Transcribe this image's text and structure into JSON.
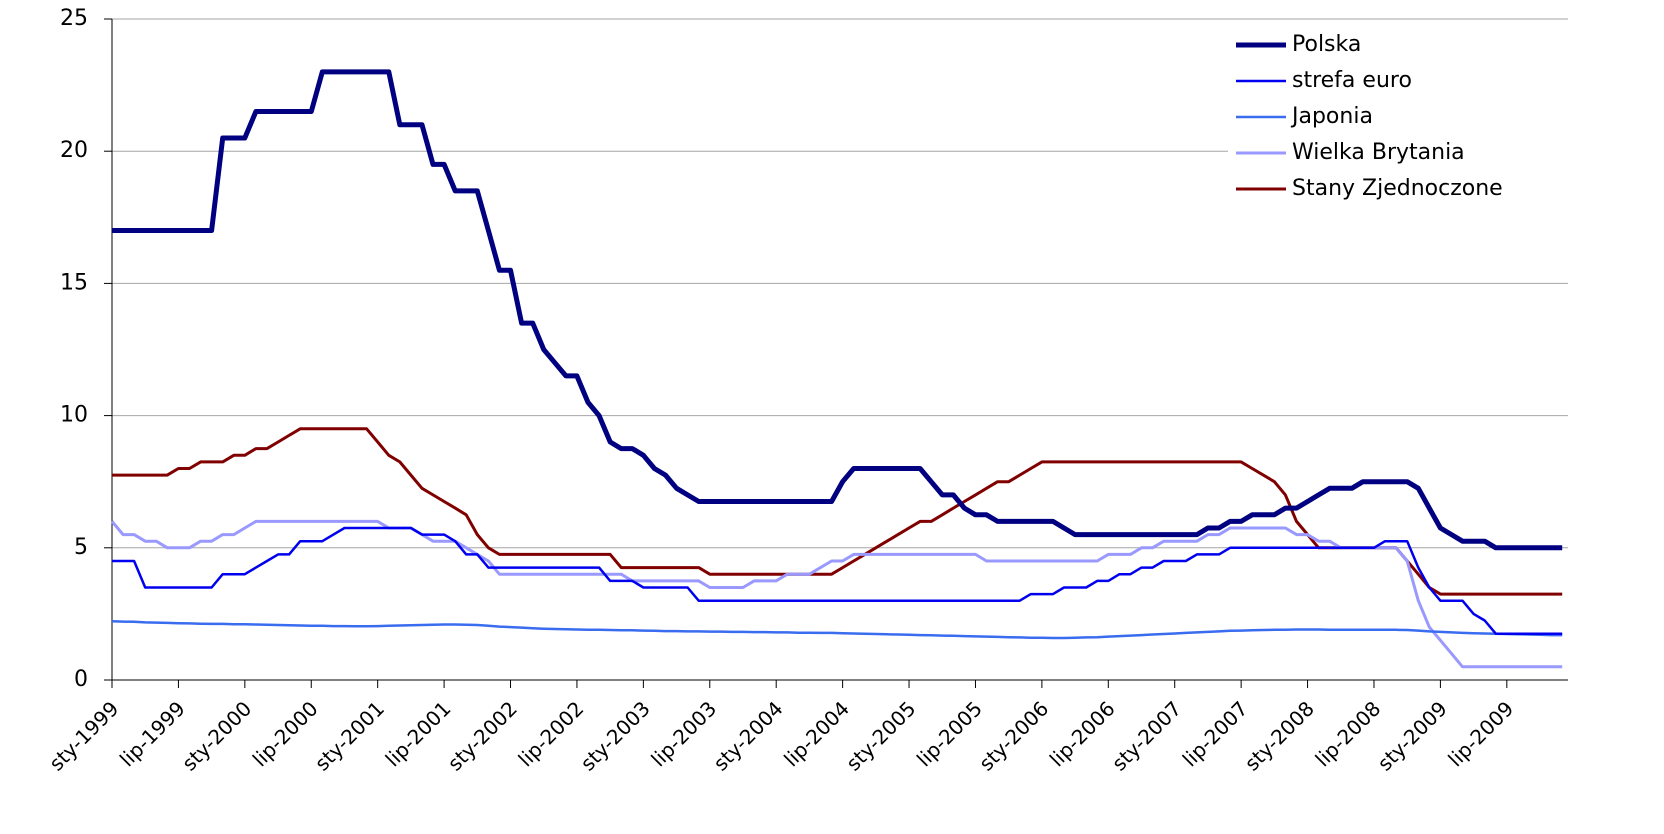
{
  "chart_data": {
    "type": "line",
    "categories": [
      "sty-1999",
      null,
      null,
      null,
      null,
      null,
      "lip-1999",
      null,
      null,
      null,
      null,
      null,
      "sty-2000",
      null,
      null,
      null,
      null,
      null,
      "lip-2000",
      null,
      null,
      null,
      null,
      null,
      "sty-2001",
      null,
      null,
      null,
      null,
      null,
      "lip-2001",
      null,
      null,
      null,
      null,
      null,
      "sty-2002",
      null,
      null,
      null,
      null,
      null,
      "lip-2002",
      null,
      null,
      null,
      null,
      null,
      "sty-2003",
      null,
      null,
      null,
      null,
      null,
      "lip-2003",
      null,
      null,
      null,
      null,
      null,
      "sty-2004",
      null,
      null,
      null,
      null,
      null,
      "lip-2004",
      null,
      null,
      null,
      null,
      null,
      "sty-2005",
      null,
      null,
      null,
      null,
      null,
      "lip-2005",
      null,
      null,
      null,
      null,
      null,
      "sty-2006",
      null,
      null,
      null,
      null,
      null,
      "lip-2006",
      null,
      null,
      null,
      null,
      null,
      "sty-2007",
      null,
      null,
      null,
      null,
      null,
      "lip-2007",
      null,
      null,
      null,
      null,
      null,
      "sty-2008",
      null,
      null,
      null,
      null,
      null,
      "lip-2008",
      null,
      null,
      null,
      null,
      null,
      "sty-2009",
      null,
      null,
      null,
      null,
      null,
      "lip-2009",
      null,
      null,
      null,
      null,
      null
    ],
    "series": [
      {
        "name": "Polska",
        "color": "#000080",
        "width": 5,
        "values": [
          17,
          17,
          17,
          17,
          17,
          17,
          17,
          17,
          17,
          17,
          20.5,
          20.5,
          20.5,
          21.5,
          21.5,
          21.5,
          21.5,
          21.5,
          21.5,
          23,
          23,
          23,
          23,
          23,
          23,
          23,
          21,
          21,
          21,
          19.5,
          19.5,
          18.5,
          18.5,
          18.5,
          17,
          15.5,
          15.5,
          13.5,
          13.5,
          12.5,
          12,
          11.5,
          11.5,
          10.5,
          10,
          9,
          8.75,
          8.75,
          8.5,
          8,
          7.75,
          7.25,
          7,
          6.75,
          6.75,
          6.75,
          6.75,
          6.75,
          6.75,
          6.75,
          6.75,
          6.75,
          6.75,
          6.75,
          6.75,
          6.75,
          7.5,
          8,
          8,
          8,
          8,
          8,
          8,
          8,
          7.5,
          7,
          7,
          6.5,
          6.25,
          6.25,
          6,
          6,
          6,
          6,
          6,
          6,
          5.75,
          5.5,
          5.5,
          5.5,
          5.5,
          5.5,
          5.5,
          5.5,
          5.5,
          5.5,
          5.5,
          5.5,
          5.5,
          5.75,
          5.75,
          6,
          6,
          6.25,
          6.25,
          6.25,
          6.5,
          6.5,
          6.75,
          7,
          7.25,
          7.25,
          7.25,
          7.5,
          7.5,
          7.5,
          7.5,
          7.5,
          7.25,
          6.5,
          5.75,
          5.5,
          5.25,
          5.25,
          5.25,
          5,
          5,
          5,
          5,
          5,
          5,
          5
        ]
      },
      {
        "name": "strefa euro",
        "color": "#0000ee",
        "width": 2.5,
        "values": [
          4.5,
          4.5,
          4.5,
          3.5,
          3.5,
          3.5,
          3.5,
          3.5,
          3.5,
          3.5,
          4,
          4,
          4,
          4.25,
          4.5,
          4.75,
          4.75,
          5.25,
          5.25,
          5.25,
          5.5,
          5.75,
          5.75,
          5.75,
          5.75,
          5.75,
          5.75,
          5.75,
          5.5,
          5.5,
          5.5,
          5.25,
          4.75,
          4.75,
          4.25,
          4.25,
          4.25,
          4.25,
          4.25,
          4.25,
          4.25,
          4.25,
          4.25,
          4.25,
          4.25,
          3.75,
          3.75,
          3.75,
          3.5,
          3.5,
          3.5,
          3.5,
          3.5,
          3,
          3,
          3,
          3,
          3,
          3,
          3,
          3,
          3,
          3,
          3,
          3,
          3,
          3,
          3,
          3,
          3,
          3,
          3,
          3,
          3,
          3,
          3,
          3,
          3,
          3,
          3,
          3,
          3,
          3,
          3.25,
          3.25,
          3.25,
          3.5,
          3.5,
          3.5,
          3.75,
          3.75,
          4,
          4,
          4.25,
          4.25,
          4.5,
          4.5,
          4.5,
          4.75,
          4.75,
          4.75,
          5,
          5,
          5,
          5,
          5,
          5,
          5,
          5,
          5,
          5,
          5,
          5,
          5,
          5,
          5.25,
          5.25,
          5.25,
          4.25,
          3.5,
          3,
          3,
          3,
          2.5,
          2.25,
          1.75,
          1.75,
          1.75,
          1.75,
          1.75,
          1.75,
          1.75
        ]
      },
      {
        "name": "Japonia",
        "color": "#3a6cf0",
        "width": 2.5,
        "values": [
          2.22,
          2.21,
          2.2,
          2.18,
          2.17,
          2.16,
          2.15,
          2.14,
          2.13,
          2.12,
          2.12,
          2.11,
          2.11,
          2.1,
          2.09,
          2.08,
          2.07,
          2.06,
          2.05,
          2.05,
          2.04,
          2.04,
          2.03,
          2.03,
          2.04,
          2.05,
          2.06,
          2.07,
          2.08,
          2.09,
          2.1,
          2.1,
          2.09,
          2.08,
          2.05,
          2.02,
          2,
          1.98,
          1.96,
          1.94,
          1.93,
          1.92,
          1.91,
          1.9,
          1.9,
          1.89,
          1.88,
          1.88,
          1.87,
          1.86,
          1.85,
          1.85,
          1.84,
          1.84,
          1.83,
          1.83,
          1.82,
          1.82,
          1.81,
          1.81,
          1.8,
          1.8,
          1.79,
          1.79,
          1.78,
          1.78,
          1.77,
          1.76,
          1.75,
          1.74,
          1.73,
          1.72,
          1.71,
          1.7,
          1.69,
          1.68,
          1.67,
          1.66,
          1.65,
          1.64,
          1.63,
          1.62,
          1.61,
          1.6,
          1.6,
          1.59,
          1.59,
          1.6,
          1.61,
          1.62,
          1.64,
          1.66,
          1.68,
          1.7,
          1.72,
          1.74,
          1.76,
          1.78,
          1.8,
          1.82,
          1.84,
          1.86,
          1.87,
          1.88,
          1.89,
          1.9,
          1.9,
          1.91,
          1.91,
          1.91,
          1.9,
          1.9,
          1.9,
          1.9,
          1.9,
          1.9,
          1.9,
          1.89,
          1.87,
          1.84,
          1.82,
          1.8,
          1.78,
          1.77,
          1.76,
          1.75,
          1.74,
          1.73,
          1.72,
          1.71,
          1.7,
          1.7
        ]
      },
      {
        "name": "Wielka Brytania",
        "color": "#9999ff",
        "width": 3,
        "values": [
          6,
          5.5,
          5.5,
          5.25,
          5.25,
          5,
          5,
          5,
          5.25,
          5.25,
          5.5,
          5.5,
          5.75,
          6,
          6,
          6,
          6,
          6,
          6,
          6,
          6,
          6,
          6,
          6,
          6,
          5.75,
          5.75,
          5.75,
          5.5,
          5.25,
          5.25,
          5.25,
          5,
          4.75,
          4.5,
          4,
          4,
          4,
          4,
          4,
          4,
          4,
          4,
          4,
          4,
          4,
          4,
          3.75,
          3.75,
          3.75,
          3.75,
          3.75,
          3.75,
          3.75,
          3.5,
          3.5,
          3.5,
          3.5,
          3.75,
          3.75,
          3.75,
          4,
          4,
          4,
          4.25,
          4.5,
          4.5,
          4.75,
          4.75,
          4.75,
          4.75,
          4.75,
          4.75,
          4.75,
          4.75,
          4.75,
          4.75,
          4.75,
          4.75,
          4.5,
          4.5,
          4.5,
          4.5,
          4.5,
          4.5,
          4.5,
          4.5,
          4.5,
          4.5,
          4.5,
          4.75,
          4.75,
          4.75,
          5,
          5,
          5.25,
          5.25,
          5.25,
          5.25,
          5.5,
          5.5,
          5.75,
          5.75,
          5.75,
          5.75,
          5.75,
          5.75,
          5.5,
          5.5,
          5.25,
          5.25,
          5,
          5,
          5,
          5,
          5,
          5,
          4.5,
          3,
          2,
          1.5,
          1,
          0.5,
          0.5,
          0.5,
          0.5,
          0.5,
          0.5,
          0.5,
          0.5,
          0.5,
          0.5
        ]
      },
      {
        "name": "Stany Zjednoczone",
        "color": "#800000",
        "width": 3,
        "values": [
          7.75,
          7.75,
          7.75,
          7.75,
          7.75,
          7.75,
          8,
          8,
          8.25,
          8.25,
          8.25,
          8.5,
          8.5,
          8.75,
          8.75,
          9,
          9.25,
          9.5,
          9.5,
          9.5,
          9.5,
          9.5,
          9.5,
          9.5,
          9,
          8.5,
          8.25,
          7.75,
          7.25,
          7,
          6.75,
          6.5,
          6.25,
          5.5,
          5,
          4.75,
          4.75,
          4.75,
          4.75,
          4.75,
          4.75,
          4.75,
          4.75,
          4.75,
          4.75,
          4.75,
          4.25,
          4.25,
          4.25,
          4.25,
          4.25,
          4.25,
          4.25,
          4.25,
          4,
          4,
          4,
          4,
          4,
          4,
          4,
          4,
          4,
          4,
          4,
          4,
          4.25,
          4.5,
          4.75,
          5,
          5.25,
          5.5,
          5.75,
          6,
          6,
          6.25,
          6.5,
          6.75,
          7,
          7.25,
          7.5,
          7.5,
          7.75,
          8,
          8.25,
          8.25,
          8.25,
          8.25,
          8.25,
          8.25,
          8.25,
          8.25,
          8.25,
          8.25,
          8.25,
          8.25,
          8.25,
          8.25,
          8.25,
          8.25,
          8.25,
          8.25,
          8.25,
          8,
          7.75,
          7.5,
          7,
          6,
          5.5,
          5,
          5,
          5,
          5,
          5,
          5,
          5,
          5,
          4.5,
          4,
          3.5,
          3.25,
          3.25,
          3.25,
          3.25,
          3.25,
          3.25,
          3.25,
          3.25,
          3.25,
          3.25,
          3.25,
          3.25
        ]
      }
    ],
    "ylim": [
      0,
      25
    ],
    "yticks": [
      0,
      5,
      10,
      15,
      20,
      25
    ],
    "grid": true,
    "legend": "top-right"
  }
}
